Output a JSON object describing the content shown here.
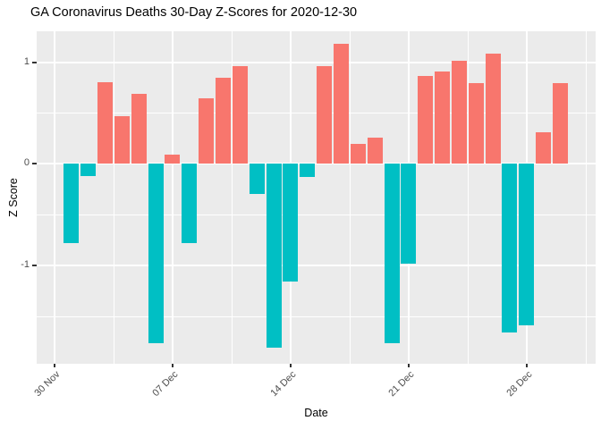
{
  "chart_data": {
    "type": "bar",
    "title": "GA Coronavirus Deaths 30-Day Z-Scores for 2020-12-30",
    "xlabel": "Date",
    "ylabel": "Z Score",
    "x": [
      "2020-12-01",
      "2020-12-02",
      "2020-12-03",
      "2020-12-04",
      "2020-12-05",
      "2020-12-06",
      "2020-12-07",
      "2020-12-08",
      "2020-12-09",
      "2020-12-10",
      "2020-12-11",
      "2020-12-12",
      "2020-12-13",
      "2020-12-14",
      "2020-12-15",
      "2020-12-16",
      "2020-12-17",
      "2020-12-18",
      "2020-12-19",
      "2020-12-20",
      "2020-12-21",
      "2020-12-22",
      "2020-12-23",
      "2020-12-24",
      "2020-12-25",
      "2020-12-26",
      "2020-12-27",
      "2020-12-28",
      "2020-12-29",
      "2020-12-30"
    ],
    "values": [
      -0.78,
      -0.12,
      0.8,
      0.47,
      0.69,
      -1.76,
      0.09,
      -0.78,
      0.64,
      0.85,
      0.96,
      -0.3,
      -1.81,
      -1.16,
      -0.13,
      0.96,
      1.18,
      0.2,
      0.26,
      -1.76,
      -0.98,
      0.86,
      0.91,
      1.01,
      0.79,
      1.08,
      -1.66,
      -1.59,
      0.31,
      0.79
    ],
    "ylim": [
      -1.97,
      1.3
    ],
    "grid": true,
    "legend": "none",
    "x_ticks": [
      {
        "label": "30 Nov",
        "day": 0
      },
      {
        "label": "07 Dec",
        "day": 7
      },
      {
        "label": "14 Dec",
        "day": 14
      },
      {
        "label": "21 Dec",
        "day": 21
      },
      {
        "label": "28 Dec",
        "day": 28
      }
    ],
    "x_minor_days": [
      3.5,
      10.5,
      17.5,
      24.5,
      31.5
    ],
    "y_ticks": [
      {
        "label": "1",
        "v": 1
      },
      {
        "label": "0",
        "v": 0
      },
      {
        "label": "-1",
        "v": -1
      }
    ],
    "y_minor": [
      0.5,
      -0.5,
      -1.5
    ],
    "colors": {
      "positive": "#F8766D",
      "negative": "#00BFC4",
      "panel_bg": "#EBEBEB",
      "grid": "#FFFFFF",
      "tick_text": "#4D4D4D",
      "tick_mark": "#333333",
      "title_text": "#000000"
    }
  }
}
